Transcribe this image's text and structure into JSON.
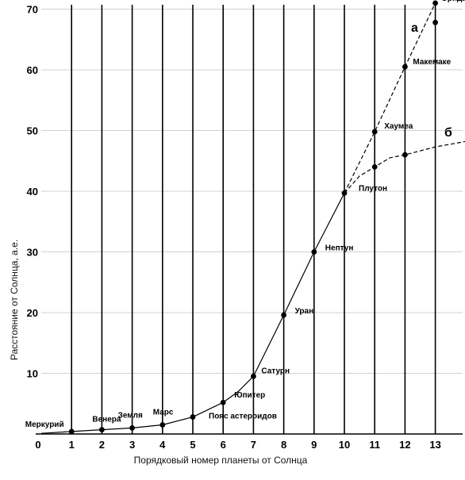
{
  "chart_data": {
    "type": "line",
    "xlabel": "Порядковый номер планеты от Солнца",
    "ylabel": "Расстояние от Солнца, а.е.",
    "xlim": [
      0,
      14
    ],
    "ylim": [
      0,
      72
    ],
    "x_ticks": [
      0,
      1,
      2,
      3,
      4,
      5,
      6,
      7,
      8,
      9,
      10,
      11,
      12,
      13
    ],
    "y_ticks": [
      10,
      20,
      30,
      40,
      50,
      60,
      70
    ],
    "grid": "vertical lines at each integer x, horizontal lines at each 10 units",
    "points": [
      {
        "x": 1,
        "y": 0.4,
        "label": "Меркурий"
      },
      {
        "x": 2,
        "y": 0.7,
        "label": "Венера"
      },
      {
        "x": 3,
        "y": 1.0,
        "label": "Земля"
      },
      {
        "x": 4,
        "y": 1.5,
        "label": "Марс"
      },
      {
        "x": 5,
        "y": 2.8,
        "label": "Пояс астероидов"
      },
      {
        "x": 6,
        "y": 5.2,
        "label": "Юпитер"
      },
      {
        "x": 7,
        "y": 9.5,
        "label": "Сатурн"
      },
      {
        "x": 8,
        "y": 19.6,
        "label": "Уран"
      },
      {
        "x": 9,
        "y": 30.0,
        "label": "Нептун"
      },
      {
        "x": 10,
        "y": 39.7,
        "label": "Плутон"
      },
      {
        "x": 11,
        "y": 49.8,
        "label": "Хаумеа"
      },
      {
        "x": 12,
        "y": 60.5,
        "label": "Макемаке"
      },
      {
        "x": 13,
        "y": 71.0,
        "label": "Эрида"
      },
      {
        "x": 11,
        "y": 44.0,
        "label": ""
      },
      {
        "x": 12,
        "y": 46.0,
        "label": ""
      },
      {
        "x": 13,
        "y": 67.8,
        "label": ""
      }
    ],
    "series": [
      {
        "name": "",
        "style": "solid",
        "x": [
          0,
          1,
          2,
          3,
          4,
          5,
          6,
          6.5,
          7,
          8,
          9,
          10
        ],
        "y": [
          0.1,
          0.4,
          0.7,
          1.0,
          1.5,
          2.8,
          5.2,
          7.0,
          9.5,
          19.6,
          30.0,
          39.7
        ]
      },
      {
        "name": "а",
        "style": "dashed",
        "x": [
          10,
          11,
          12,
          13
        ],
        "y": [
          39.7,
          49.8,
          60.5,
          71.0
        ]
      },
      {
        "name": "б",
        "style": "dashed",
        "x": [
          10,
          10.5,
          11,
          11.5,
          12,
          13,
          14
        ],
        "y": [
          39.7,
          42.5,
          44.0,
          45.5,
          46.0,
          47.3,
          48.2
        ]
      }
    ],
    "curve_labels": [
      {
        "text": "а",
        "x": 12.2,
        "y": 66.3
      },
      {
        "text": "б",
        "x": 13.3,
        "y": 49.0
      }
    ]
  }
}
